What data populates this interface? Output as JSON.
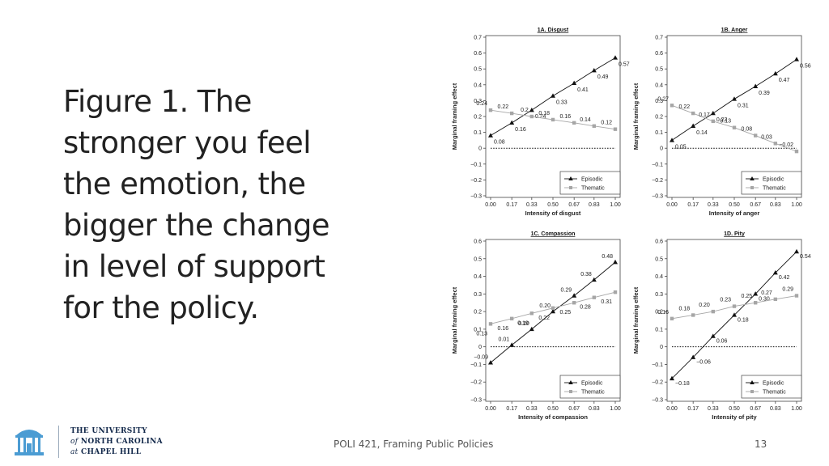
{
  "slide": {
    "caption": "Figure 1. The stronger you feel the emotion, the bigger the change in level of support for the policy.",
    "footer": "POLI 421, Framing Public Policies",
    "page_number": "13",
    "logo": {
      "line1": "THE UNIVERSITY",
      "line2_a": "of",
      "line2_b": "NORTH CAROLINA",
      "line3_a": "at",
      "line3_b": "CHAPEL HILL"
    },
    "colors": {
      "episodic": "#111111",
      "thematic": "#a6a6a6",
      "text": "#222222"
    }
  },
  "chart_data": [
    {
      "type": "line",
      "title": "1A. Disgust",
      "xlabel": "Intensity of disgust",
      "ylabel": "Marginal framing effect",
      "x": [
        0.0,
        0.17,
        0.33,
        0.5,
        0.67,
        0.83,
        1.0
      ],
      "x_ticks": [
        "0.00",
        "0.17",
        "0.33",
        "0.50",
        "0.67",
        "0.83",
        "1.00"
      ],
      "y_ticks": [
        "0.7",
        "0.6",
        "0.5",
        "0.4",
        "0.3",
        "0.2",
        "0.1",
        "0",
        "−0.1",
        "−0.2",
        "−0.3"
      ],
      "ylim": [
        -0.3,
        0.7
      ],
      "zero_line": "dotted",
      "legend_position": "bottom-right",
      "series": [
        {
          "name": "Episodic",
          "marker": "triangle",
          "values": [
            0.08,
            0.16,
            0.24,
            0.33,
            0.41,
            0.49,
            0.57
          ],
          "labels": [
            "0.08",
            "0.16",
            "0.24",
            "0.33",
            "0.41",
            "0.49",
            "0.57"
          ]
        },
        {
          "name": "Thematic",
          "marker": "square",
          "values": [
            0.24,
            0.22,
            0.2,
            0.18,
            0.16,
            0.14,
            0.12
          ],
          "labels": [
            "0.24",
            "0.22",
            "0.2",
            "0.18",
            "0.16",
            "0.14",
            "0.12"
          ]
        }
      ]
    },
    {
      "type": "line",
      "title": "1B. Anger",
      "xlabel": "Intensity of anger",
      "ylabel": "Marginal framing effect",
      "x": [
        0.0,
        0.17,
        0.33,
        0.5,
        0.67,
        0.83,
        1.0
      ],
      "x_ticks": [
        "0.00",
        "0.17",
        "0.33",
        "0.50",
        "0.67",
        "0.83",
        "1.00"
      ],
      "y_ticks": [
        "0.7",
        "0.6",
        "0.5",
        "0.4",
        "0.3",
        "0.2",
        "0.1",
        "0",
        "−0.1",
        "−0.2",
        "−0.3"
      ],
      "ylim": [
        -0.3,
        0.7
      ],
      "zero_line": "dotted",
      "legend_position": "bottom-right",
      "series": [
        {
          "name": "Episodic",
          "marker": "triangle",
          "values": [
            0.05,
            0.14,
            0.22,
            0.31,
            0.39,
            0.47,
            0.56
          ],
          "labels": [
            "0.05",
            "0.14",
            "0.22",
            "0.31",
            "0.39",
            "0.47",
            "0.56"
          ]
        },
        {
          "name": "Thematic",
          "marker": "square",
          "values": [
            0.27,
            0.22,
            0.17,
            0.13,
            0.08,
            0.03,
            -0.02
          ],
          "labels": [
            "0.27",
            "0.22",
            "0.17",
            "0.13",
            "0.08",
            "0.03",
            "−0.02"
          ]
        }
      ]
    },
    {
      "type": "line",
      "title": "1C. Compassion",
      "xlabel": "Intensity of compassion",
      "ylabel": "Marginal framing effect",
      "x": [
        0.0,
        0.17,
        0.33,
        0.5,
        0.67,
        0.83,
        1.0
      ],
      "x_ticks": [
        "0.00",
        "0.17",
        "0.33",
        "0.50",
        "0.67",
        "0.83",
        "1.00"
      ],
      "y_ticks": [
        "0.6",
        "0.5",
        "0.4",
        "0.3",
        "0.2",
        "0.1",
        "0",
        "−0.1",
        "−0.2",
        "−0.3"
      ],
      "ylim": [
        -0.3,
        0.6
      ],
      "zero_line": "dotted",
      "legend_position": "bottom-right",
      "series": [
        {
          "name": "Episodic",
          "marker": "triangle",
          "values": [
            -0.09,
            0.01,
            0.1,
            0.2,
            0.29,
            0.38,
            0.48
          ],
          "labels": [
            "−0.09",
            "0.01",
            "0.10",
            "0.20",
            "0.29",
            "0.38",
            "0.48"
          ]
        },
        {
          "name": "Thematic",
          "marker": "square",
          "values": [
            0.13,
            0.16,
            0.19,
            0.22,
            0.25,
            0.28,
            0.31
          ],
          "labels": [
            "0.13",
            "0.16",
            "0.19",
            "0.22",
            "0.25",
            "0.28",
            "0.31"
          ]
        }
      ]
    },
    {
      "type": "line",
      "title": "1D. Pity",
      "xlabel": "Intensity of pity",
      "ylabel": "Marginal framing effect",
      "x": [
        0.0,
        0.17,
        0.33,
        0.5,
        0.67,
        0.83,
        1.0
      ],
      "x_ticks": [
        "0.00",
        "0.17",
        "0.33",
        "0.50",
        "0.67",
        "0.83",
        "1.00"
      ],
      "y_ticks": [
        "0.6",
        "0.5",
        "0.4",
        "0.3",
        "0.2",
        "0.1",
        "0",
        "−0.1",
        "−0.2",
        "−0.3"
      ],
      "ylim": [
        -0.3,
        0.6
      ],
      "zero_line": "dotted",
      "legend_position": "bottom-right",
      "series": [
        {
          "name": "Episodic",
          "marker": "triangle",
          "values": [
            -0.18,
            -0.06,
            0.06,
            0.18,
            0.3,
            0.42,
            0.54
          ],
          "labels": [
            "−0.18",
            "−0.06",
            "0.06",
            "0.18",
            "0.30",
            "0.42",
            "0.54"
          ]
        },
        {
          "name": "Thematic",
          "marker": "square",
          "values": [
            0.16,
            0.18,
            0.2,
            0.23,
            0.25,
            0.27,
            0.29
          ],
          "labels": [
            "0.16",
            "0.18",
            "0.20",
            "0.23",
            "0.25",
            "0.27",
            "0.29"
          ]
        }
      ]
    }
  ]
}
